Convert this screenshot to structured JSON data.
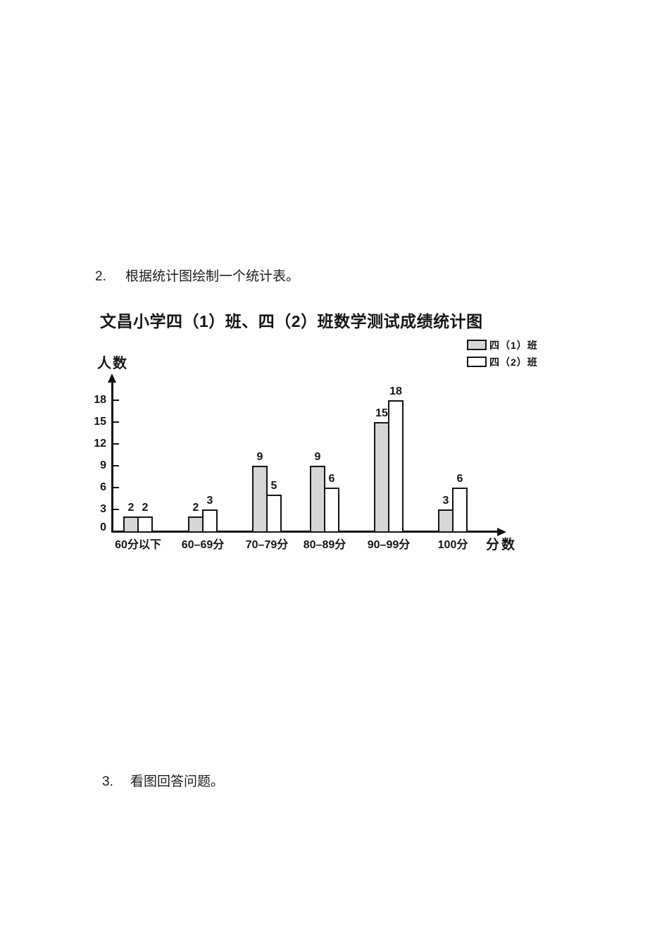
{
  "page": {
    "question2": {
      "number": "2.",
      "text": "根据统计图绘制一个统计表。"
    },
    "question3": {
      "number": "3.",
      "text": "看图回答问题。"
    }
  },
  "chart_data": {
    "type": "bar",
    "title": "文昌小学四（1）班、四（2）班数学测试成绩统计图",
    "ylabel": "人数",
    "xlabel": "分数",
    "categories": [
      "60分以下",
      "60–69分",
      "70–79分",
      "80–89分",
      "90–99分",
      "100分"
    ],
    "series": [
      {
        "name": "四（1）班",
        "color": "#d6d6d6",
        "values": [
          2,
          2,
          9,
          9,
          15,
          3
        ]
      },
      {
        "name": "四（2）班",
        "color": "#ffffff",
        "values": [
          2,
          3,
          5,
          6,
          18,
          6
        ]
      }
    ],
    "y_ticks": [
      0,
      3,
      6,
      9,
      12,
      15,
      18
    ],
    "ylim": [
      0,
      20
    ],
    "grid": false,
    "legend_position": "top-right",
    "bar_border_color": "#141414",
    "axis_color": "#141414"
  }
}
